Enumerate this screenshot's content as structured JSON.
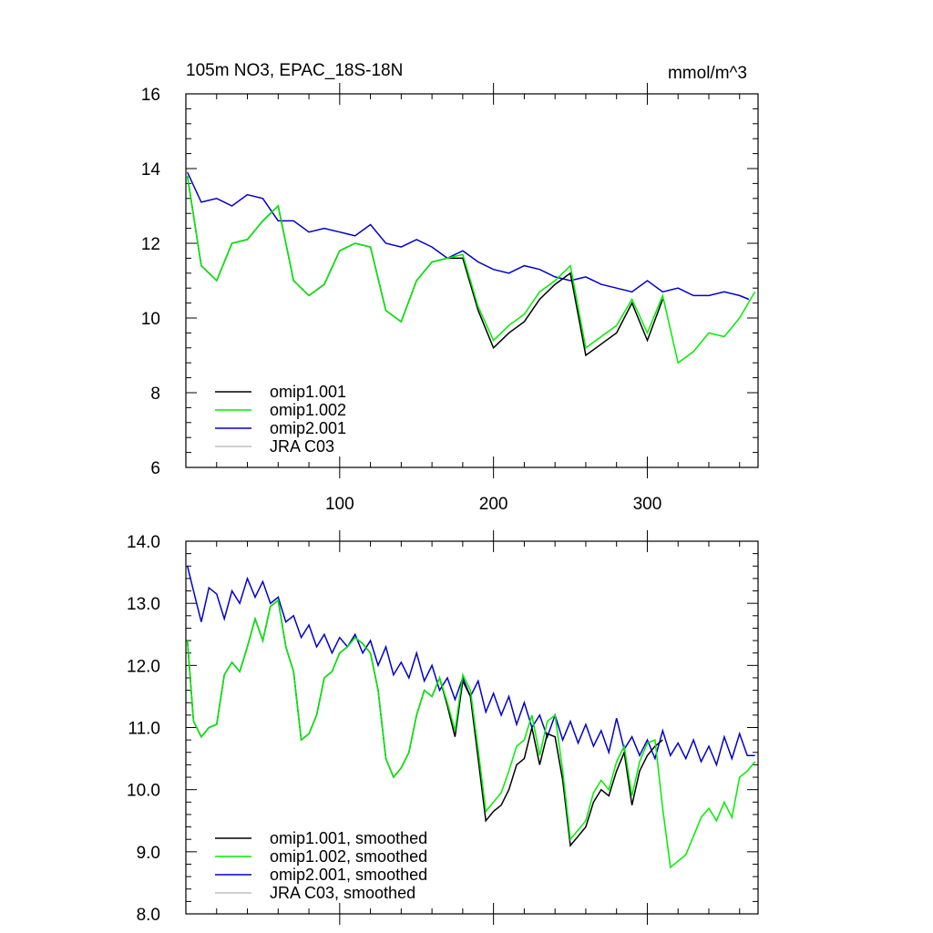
{
  "header": {
    "title": "105m NO3, EPAC_18S-18N",
    "units": "mmol/m^3"
  },
  "chart_data": [
    {
      "type": "line",
      "title": "105m NO3, EPAC_18S-18N",
      "units": "mmol/m^3",
      "xlim": [
        0,
        372
      ],
      "ylim": [
        6,
        16
      ],
      "xticks": [
        100,
        200,
        300
      ],
      "yticks": [
        6,
        8,
        10,
        12,
        14,
        16
      ],
      "ytick_labels": [
        "6",
        "8",
        "10",
        "12",
        "14",
        "16"
      ],
      "legend_position": "bottom-left",
      "series": [
        {
          "name": "omip1.001",
          "color": "#000000",
          "x": [
            1,
            10,
            20,
            30,
            40,
            50,
            60,
            70,
            80,
            90,
            100,
            110,
            120,
            130,
            140,
            150,
            160,
            170,
            180,
            190,
            200,
            210,
            220,
            230,
            240,
            250,
            260,
            270,
            280,
            290,
            300,
            310
          ],
          "y": [
            13.8,
            11.4,
            11.0,
            12.0,
            12.1,
            12.6,
            13.0,
            11.0,
            10.6,
            10.9,
            11.8,
            12.0,
            11.9,
            10.2,
            9.9,
            11.0,
            11.5,
            11.6,
            11.6,
            10.2,
            9.2,
            9.6,
            9.9,
            10.5,
            10.9,
            11.2,
            9.0,
            9.3,
            9.6,
            10.4,
            9.4,
            10.5
          ]
        },
        {
          "name": "omip1.002",
          "color": "#00ee00",
          "x": [
            1,
            10,
            20,
            30,
            40,
            50,
            60,
            70,
            80,
            90,
            100,
            110,
            120,
            130,
            140,
            150,
            160,
            170,
            180,
            190,
            200,
            210,
            220,
            230,
            240,
            250,
            260,
            270,
            280,
            290,
            300,
            310,
            320,
            330,
            340,
            350,
            360,
            370
          ],
          "y": [
            13.8,
            11.4,
            11.0,
            12.0,
            12.1,
            12.6,
            13.0,
            11.0,
            10.6,
            10.9,
            11.8,
            12.0,
            11.9,
            10.2,
            9.9,
            11.0,
            11.5,
            11.6,
            11.7,
            10.3,
            9.4,
            9.8,
            10.1,
            10.7,
            11.0,
            11.4,
            9.2,
            9.5,
            9.8,
            10.5,
            9.6,
            10.6,
            8.8,
            9.1,
            9.6,
            9.5,
            10.0,
            10.7
          ]
        },
        {
          "name": "omip2.001",
          "color": "#0000cc",
          "x": [
            1,
            10,
            20,
            30,
            40,
            50,
            60,
            70,
            80,
            90,
            100,
            110,
            120,
            130,
            140,
            150,
            160,
            170,
            180,
            190,
            200,
            210,
            220,
            230,
            240,
            250,
            260,
            270,
            280,
            290,
            300,
            310,
            320,
            330,
            340,
            350,
            360,
            366
          ],
          "y": [
            13.9,
            13.1,
            13.2,
            13.0,
            13.3,
            13.2,
            12.6,
            12.6,
            12.3,
            12.4,
            12.3,
            12.2,
            12.5,
            12.0,
            11.9,
            12.1,
            11.9,
            11.6,
            11.8,
            11.5,
            11.3,
            11.2,
            11.4,
            11.3,
            11.1,
            11.0,
            11.1,
            10.9,
            10.8,
            10.7,
            11.0,
            10.7,
            10.8,
            10.6,
            10.6,
            10.7,
            10.6,
            10.5
          ]
        },
        {
          "name": "JRA C03",
          "color": "#c0c0c0",
          "x": [],
          "y": []
        }
      ]
    },
    {
      "type": "line",
      "xlim": [
        0,
        372
      ],
      "ylim": [
        8.0,
        14.0
      ],
      "xticks": [
        100,
        200,
        300
      ],
      "yticks": [
        8.0,
        9.0,
        10.0,
        11.0,
        12.0,
        13.0,
        14.0
      ],
      "ytick_labels": [
        "8.0",
        "9.0",
        "10.0",
        "11.0",
        "12.0",
        "13.0",
        "14.0"
      ],
      "legend_position": "bottom-left",
      "series": [
        {
          "name": "omip1.001, smoothed",
          "color": "#000000",
          "x": [
            1,
            5,
            10,
            15,
            20,
            25,
            30,
            35,
            40,
            45,
            50,
            55,
            60,
            65,
            70,
            75,
            80,
            85,
            90,
            95,
            100,
            105,
            110,
            115,
            120,
            125,
            130,
            135,
            140,
            145,
            150,
            155,
            160,
            165,
            170,
            175,
            180,
            185,
            190,
            195,
            200,
            205,
            210,
            215,
            220,
            225,
            230,
            235,
            240,
            245,
            250,
            255,
            260,
            265,
            270,
            275,
            280,
            285,
            290,
            295,
            300,
            305,
            310
          ],
          "y": [
            12.4,
            11.1,
            10.85,
            11.0,
            11.05,
            11.85,
            12.05,
            11.9,
            12.3,
            12.75,
            12.4,
            12.95,
            13.05,
            12.3,
            11.9,
            10.8,
            10.9,
            11.2,
            11.8,
            11.9,
            12.2,
            12.3,
            12.45,
            12.35,
            12.2,
            11.6,
            10.5,
            10.2,
            10.35,
            10.6,
            11.2,
            11.6,
            11.5,
            11.8,
            11.35,
            10.85,
            11.75,
            11.5,
            10.5,
            9.5,
            9.65,
            9.75,
            10.0,
            10.4,
            10.5,
            11.0,
            10.4,
            10.9,
            10.85,
            10.15,
            9.1,
            9.25,
            9.4,
            9.8,
            10.0,
            9.9,
            10.3,
            10.6,
            9.75,
            10.3,
            10.55,
            10.7,
            10.8
          ]
        },
        {
          "name": "omip1.002, smoothed",
          "color": "#00ee00",
          "x": [
            1,
            5,
            10,
            15,
            20,
            25,
            30,
            35,
            40,
            45,
            50,
            55,
            60,
            65,
            70,
            75,
            80,
            85,
            90,
            95,
            100,
            105,
            110,
            115,
            120,
            125,
            130,
            135,
            140,
            145,
            150,
            155,
            160,
            165,
            170,
            175,
            180,
            185,
            190,
            195,
            200,
            205,
            210,
            215,
            220,
            225,
            230,
            235,
            240,
            245,
            250,
            255,
            260,
            265,
            270,
            275,
            280,
            285,
            290,
            295,
            300,
            305,
            310,
            315,
            320,
            325,
            330,
            335,
            340,
            345,
            350,
            355,
            360,
            365,
            370
          ],
          "y": [
            12.4,
            11.1,
            10.85,
            11.0,
            11.05,
            11.85,
            12.05,
            11.9,
            12.3,
            12.75,
            12.4,
            12.95,
            13.05,
            12.3,
            11.9,
            10.8,
            10.9,
            11.2,
            11.8,
            11.9,
            12.2,
            12.3,
            12.45,
            12.35,
            12.2,
            11.6,
            10.5,
            10.2,
            10.35,
            10.6,
            11.2,
            11.6,
            11.5,
            11.8,
            11.4,
            10.95,
            11.85,
            11.6,
            10.65,
            9.65,
            9.8,
            9.95,
            10.3,
            10.7,
            10.8,
            11.2,
            10.55,
            11.1,
            11.2,
            10.3,
            9.2,
            9.35,
            9.5,
            9.95,
            10.15,
            10.0,
            10.45,
            10.7,
            9.9,
            10.45,
            10.75,
            10.8,
            9.7,
            8.75,
            8.85,
            8.95,
            9.25,
            9.55,
            9.7,
            9.5,
            9.8,
            9.55,
            10.2,
            10.3,
            10.45
          ]
        },
        {
          "name": "omip2.001, smoothed",
          "color": "#0000cc",
          "x": [
            1,
            5,
            10,
            15,
            20,
            25,
            30,
            35,
            40,
            45,
            50,
            55,
            60,
            65,
            70,
            75,
            80,
            85,
            90,
            95,
            100,
            105,
            110,
            115,
            120,
            125,
            130,
            135,
            140,
            145,
            150,
            155,
            160,
            165,
            170,
            175,
            180,
            185,
            190,
            195,
            200,
            205,
            210,
            215,
            220,
            225,
            230,
            235,
            240,
            245,
            250,
            255,
            260,
            265,
            270,
            275,
            280,
            285,
            290,
            295,
            300,
            305,
            310,
            315,
            320,
            325,
            330,
            335,
            340,
            345,
            350,
            355,
            360,
            365,
            370
          ],
          "y": [
            13.6,
            13.2,
            12.7,
            13.25,
            13.15,
            12.75,
            13.2,
            13.0,
            13.4,
            13.1,
            13.35,
            13.0,
            13.1,
            12.7,
            12.8,
            12.45,
            12.65,
            12.3,
            12.5,
            12.2,
            12.45,
            12.3,
            12.5,
            12.2,
            12.4,
            12.0,
            12.3,
            11.85,
            12.05,
            11.8,
            12.2,
            11.75,
            12.0,
            11.6,
            11.8,
            11.45,
            11.8,
            11.5,
            11.75,
            11.25,
            11.55,
            11.2,
            11.5,
            11.05,
            11.4,
            11.0,
            11.2,
            10.85,
            11.2,
            10.8,
            11.1,
            10.75,
            11.05,
            10.7,
            10.95,
            10.6,
            11.15,
            10.65,
            10.85,
            10.55,
            10.8,
            10.5,
            10.95,
            10.55,
            10.75,
            10.5,
            10.8,
            10.45,
            10.7,
            10.4,
            10.85,
            10.5,
            10.9,
            10.55,
            10.55
          ]
        },
        {
          "name": "JRA C03, smoothed",
          "color": "#c0c0c0",
          "x": [],
          "y": []
        }
      ]
    }
  ]
}
